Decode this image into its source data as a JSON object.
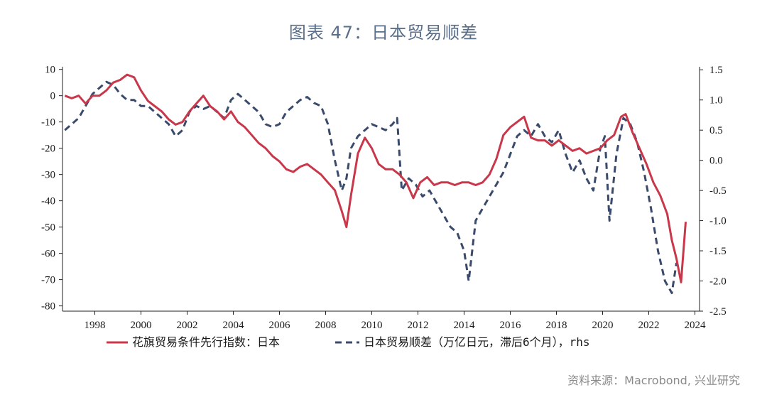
{
  "title": "图表 47：日本贸易顺差",
  "source": "资料来源：Macrobond, 兴业研究",
  "chart_data": {
    "type": "line",
    "title": "图表 47：日本贸易顺差",
    "x_ticks": [
      1998,
      2000,
      2002,
      2004,
      2006,
      2008,
      2010,
      2012,
      2014,
      2016,
      2018,
      2020,
      2022,
      2024
    ],
    "xlim": [
      1996.6,
      2024.2
    ],
    "left_axis": {
      "ylim": [
        -82,
        11
      ],
      "ticks": [
        10,
        0,
        -10,
        -20,
        -30,
        -40,
        -50,
        -60,
        -70,
        -80
      ]
    },
    "right_axis": {
      "ylim": [
        -2.5,
        1.55
      ],
      "ticks": [
        "1.5",
        "1.0",
        "0.5",
        "0.0",
        "-0.5",
        "-1.0",
        "-1.5",
        "-2.0",
        "-2.5"
      ]
    },
    "colors": {
      "red": "#c8374a",
      "navy": "#3a4a6b"
    },
    "series": [
      {
        "name": "花旗贸易条件先行指数：日本",
        "axis": "left",
        "style": "solid",
        "color": "#c8374a",
        "x": [
          1996.7,
          1997.0,
          1997.3,
          1997.6,
          1997.9,
          1998.2,
          1998.5,
          1998.8,
          1999.1,
          1999.4,
          1999.7,
          2000.0,
          2000.3,
          2000.6,
          2000.9,
          2001.2,
          2001.5,
          2001.8,
          2002.1,
          2002.4,
          2002.7,
          2003.0,
          2003.3,
          2003.6,
          2003.9,
          2004.2,
          2004.5,
          2004.8,
          2005.1,
          2005.4,
          2005.7,
          2006.0,
          2006.3,
          2006.6,
          2006.9,
          2007.2,
          2007.5,
          2007.8,
          2008.1,
          2008.4,
          2008.7,
          2008.9,
          2009.1,
          2009.4,
          2009.7,
          2010.0,
          2010.3,
          2010.6,
          2010.9,
          2011.2,
          2011.5,
          2011.8,
          2012.1,
          2012.4,
          2012.7,
          2013.0,
          2013.3,
          2013.6,
          2013.9,
          2014.2,
          2014.5,
          2014.8,
          2015.1,
          2015.4,
          2015.7,
          2016.0,
          2016.3,
          2016.6,
          2016.9,
          2017.2,
          2017.5,
          2017.8,
          2018.1,
          2018.4,
          2018.7,
          2019.0,
          2019.3,
          2019.6,
          2019.9,
          2020.2,
          2020.5,
          2020.8,
          2021.0,
          2021.3,
          2021.6,
          2021.9,
          2022.2,
          2022.5,
          2022.8,
          2023.0,
          2023.2,
          2023.4,
          2023.6
        ],
        "values": [
          0,
          -1,
          0,
          -3,
          0,
          0,
          2,
          5,
          6,
          8,
          7,
          2,
          -2,
          -4,
          -6,
          -9,
          -11,
          -10,
          -6,
          -3,
          0,
          -4,
          -6,
          -9,
          -6,
          -10,
          -12,
          -15,
          -18,
          -20,
          -23,
          -25,
          -28,
          -29,
          -27,
          -26,
          -28,
          -30,
          -33,
          -36,
          -44,
          -50,
          -38,
          -22,
          -16,
          -20,
          -26,
          -28,
          -28,
          -30,
          -33,
          -39,
          -33,
          -31,
          -34,
          -33,
          -33,
          -34,
          -33,
          -33,
          -34,
          -33,
          -30,
          -24,
          -15,
          -12,
          -10,
          -8,
          -16,
          -17,
          -17,
          -19,
          -17,
          -19,
          -21,
          -20,
          -22,
          -21,
          -20,
          -17,
          -15,
          -8,
          -7,
          -14,
          -20,
          -26,
          -33,
          -38,
          -45,
          -55,
          -62,
          -71,
          -48
        ]
      },
      {
        "name": "日本贸易顺差（万亿日元，滞后6个月），rhs",
        "axis": "right",
        "style": "dashed",
        "color": "#3a4a6b",
        "x": [
          1996.7,
          1997.0,
          1997.3,
          1997.6,
          1997.9,
          1998.2,
          1998.5,
          1998.8,
          1999.1,
          1999.4,
          1999.7,
          2000.0,
          2000.3,
          2000.6,
          2000.9,
          2001.2,
          2001.5,
          2001.8,
          2002.1,
          2002.4,
          2002.7,
          2003.0,
          2003.3,
          2003.6,
          2003.9,
          2004.2,
          2004.5,
          2004.8,
          2005.1,
          2005.4,
          2005.7,
          2006.0,
          2006.3,
          2006.6,
          2006.9,
          2007.2,
          2007.5,
          2007.8,
          2008.1,
          2008.4,
          2008.7,
          2008.9,
          2009.1,
          2009.4,
          2009.7,
          2010.0,
          2010.3,
          2010.6,
          2010.9,
          2011.1,
          2011.3,
          2011.6,
          2011.9,
          2012.2,
          2012.5,
          2012.8,
          2013.1,
          2013.4,
          2013.7,
          2014.0,
          2014.2,
          2014.5,
          2014.8,
          2015.1,
          2015.4,
          2015.7,
          2016.0,
          2016.3,
          2016.6,
          2016.9,
          2017.2,
          2017.5,
          2017.8,
          2018.1,
          2018.4,
          2018.7,
          2019.0,
          2019.3,
          2019.6,
          2019.9,
          2020.1,
          2020.3,
          2020.6,
          2020.9,
          2021.2,
          2021.5,
          2021.8,
          2022.1,
          2022.4,
          2022.7,
          2023.0,
          2023.2
        ],
        "values": [
          0.5,
          0.6,
          0.7,
          0.9,
          1.1,
          1.2,
          1.3,
          1.25,
          1.1,
          1.0,
          1.0,
          0.9,
          0.9,
          0.8,
          0.7,
          0.6,
          0.4,
          0.5,
          0.8,
          0.9,
          0.85,
          0.9,
          0.8,
          0.7,
          1.0,
          1.1,
          1.0,
          0.9,
          0.8,
          0.6,
          0.55,
          0.6,
          0.8,
          0.9,
          1.0,
          1.05,
          0.95,
          0.9,
          0.6,
          0.0,
          -0.5,
          -0.3,
          0.2,
          0.4,
          0.5,
          0.6,
          0.55,
          0.5,
          0.6,
          0.7,
          -0.5,
          -0.3,
          -0.4,
          -0.6,
          -0.5,
          -0.7,
          -0.9,
          -1.1,
          -1.2,
          -1.5,
          -2.0,
          -1.0,
          -0.8,
          -0.6,
          -0.4,
          -0.2,
          0.1,
          0.4,
          0.5,
          0.4,
          0.6,
          0.4,
          0.3,
          0.5,
          0.1,
          -0.2,
          0.0,
          -0.3,
          -0.5,
          0.2,
          0.4,
          -1.0,
          0.1,
          0.7,
          0.6,
          0.3,
          -0.2,
          -0.8,
          -1.5,
          -2.0,
          -2.2,
          -1.7
        ]
      }
    ],
    "legend": {
      "position": "bottom",
      "items": [
        {
          "label": "花旗贸易条件先行指数：日本",
          "style": "solid",
          "color": "#c8374a"
        },
        {
          "label": "日本贸易顺差（万亿日元，滞后6个月），rhs",
          "style": "dashed",
          "color": "#3a4a6b"
        }
      ]
    },
    "grid": false
  }
}
